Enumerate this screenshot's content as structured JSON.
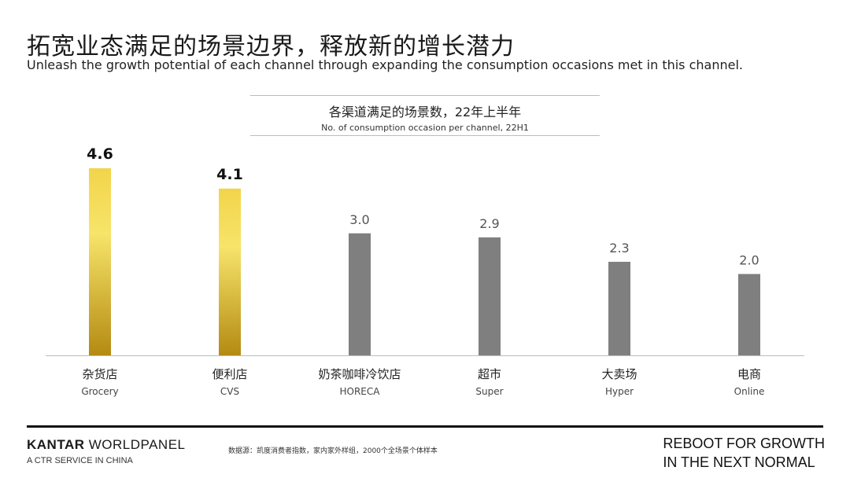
{
  "page": {
    "title": "拓宽业态满足的场景边界，释放新的增长潜力",
    "subtitle": "Unleash the growth potential of each channel through expanding the consumption occasions met in this channel."
  },
  "chart_data": {
    "type": "bar",
    "title": "各渠道满足的场景数，22年上半年",
    "subtitle": "No. of consumption occasion per channel, 22H1",
    "categories": [
      "杂货店",
      "便利店",
      "奶茶咖啡冷饮店",
      "超市",
      "大卖场",
      "电商"
    ],
    "categories_en": [
      "Grocery",
      "CVS",
      "HORECA",
      "Super",
      "Hyper",
      "Online"
    ],
    "values": [
      4.6,
      4.1,
      3.0,
      2.9,
      2.3,
      2.0
    ],
    "value_labels": [
      "4.6",
      "4.1",
      "3.0",
      "2.9",
      "2.3",
      "2.0"
    ],
    "highlighted": [
      true,
      true,
      false,
      false,
      false,
      false
    ],
    "ylim": [
      0,
      5
    ],
    "grid": false,
    "colors": {
      "highlight_top": "#f2d44a",
      "highlight_mid": "#f7e46a",
      "highlight_bottom": "#b48a12",
      "normal": "#7f7f7f",
      "axis": "#bdbdbd"
    }
  },
  "footer": {
    "brand_bold": "KANTAR",
    "brand_light": " WORLDPANEL",
    "brand_sub": "A CTR SERVICE IN CHINA",
    "source": "数据源：凯度消费者指数，家内家外样组，2000个全场景个体样本",
    "tagline_line1": "REBOOT FOR GROWTH",
    "tagline_line2": "IN THE NEXT NORMAL"
  }
}
